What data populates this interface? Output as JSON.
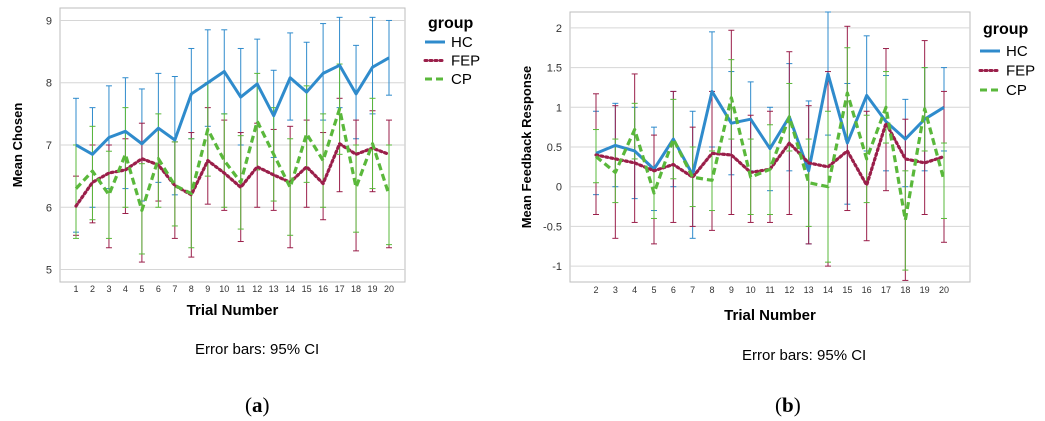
{
  "chart_data": [
    {
      "type": "line",
      "panel_label": "a",
      "xlabel": "Trial Number",
      "ylabel": "Mean Chosen",
      "caption": "Error bars: 95% CI",
      "legend_title": "group",
      "legend_position": "top-right",
      "grid": "horizontal",
      "categories": [
        "1",
        "2",
        "3",
        "4",
        "5",
        "6",
        "7",
        "8",
        "9",
        "10",
        "11",
        "12",
        "13",
        "14",
        "15",
        "16",
        "17",
        "18",
        "19",
        "20"
      ],
      "ylim": [
        4.8,
        9.2
      ],
      "yticks": [
        "5",
        "6",
        "7",
        "8",
        "9"
      ],
      "series": [
        {
          "name": "HC",
          "color": "#2f8bcc",
          "dash": "solid",
          "values": [
            7.0,
            6.85,
            7.12,
            7.22,
            7.02,
            7.27,
            7.08,
            7.82,
            8.0,
            8.18,
            7.77,
            7.98,
            7.47,
            8.08,
            7.85,
            8.15,
            8.28,
            7.82,
            8.25,
            8.4
          ],
          "ci_low": [
            5.6,
            6.0,
            6.3,
            6.3,
            6.1,
            6.4,
            6.2,
            7.1,
            7.3,
            7.5,
            7.0,
            7.3,
            6.8,
            7.4,
            7.1,
            7.4,
            7.6,
            7.1,
            7.5,
            7.8
          ],
          "ci_high": [
            7.75,
            7.6,
            7.95,
            8.08,
            7.9,
            8.15,
            8.1,
            8.55,
            8.85,
            8.85,
            8.55,
            8.7,
            8.2,
            8.8,
            8.65,
            8.95,
            9.05,
            8.6,
            9.05,
            9.0
          ]
        },
        {
          "name": "FEP",
          "color": "#9a1f4a",
          "dash": "dotted",
          "values": [
            6.02,
            6.4,
            6.55,
            6.6,
            6.78,
            6.68,
            6.35,
            6.2,
            6.75,
            6.55,
            6.32,
            6.65,
            6.52,
            6.4,
            6.65,
            6.38,
            7.02,
            6.85,
            6.95,
            6.85
          ],
          "ci_low": [
            5.55,
            5.75,
            5.35,
            5.9,
            5.12,
            6.1,
            5.5,
            5.2,
            6.05,
            5.95,
            5.45,
            6.0,
            5.95,
            5.35,
            6.0,
            5.8,
            6.25,
            5.3,
            6.25,
            5.35
          ],
          "ci_high": [
            6.5,
            7.0,
            7.0,
            7.1,
            7.35,
            7.25,
            7.05,
            7.2,
            7.6,
            7.4,
            7.2,
            7.35,
            7.25,
            7.3,
            7.4,
            7.2,
            7.75,
            7.4,
            7.55,
            7.4
          ]
        },
        {
          "name": "CP",
          "color": "#5ab83b",
          "dash": "dashed",
          "values": [
            6.3,
            6.58,
            6.2,
            6.85,
            5.95,
            6.78,
            6.35,
            6.22,
            7.25,
            6.75,
            6.4,
            7.38,
            6.85,
            6.32,
            7.18,
            6.75,
            7.58,
            6.32,
            7.02,
            6.2
          ],
          "ci_low": [
            5.5,
            5.8,
            5.5,
            6.0,
            5.25,
            6.0,
            5.7,
            5.35,
            6.5,
            6.0,
            5.65,
            6.6,
            6.1,
            5.55,
            6.4,
            6.0,
            6.85,
            5.6,
            6.3,
            5.4
          ],
          "ci_high": [
            7.0,
            7.3,
            6.9,
            7.6,
            6.7,
            7.5,
            7.05,
            7.1,
            8.0,
            7.5,
            7.15,
            8.15,
            7.6,
            7.1,
            7.95,
            7.5,
            8.3,
            7.0,
            7.75,
            7.0
          ]
        }
      ]
    },
    {
      "type": "line",
      "panel_label": "b",
      "xlabel": "Trial Number",
      "ylabel": "Mean Feedback Response",
      "caption": "Error bars: 95% CI",
      "legend_title": "group",
      "legend_position": "top-right",
      "grid": "horizontal",
      "categories": [
        "2",
        "3",
        "4",
        "5",
        "6",
        "7",
        "8",
        "9",
        "10",
        "11",
        "12",
        "13",
        "14",
        "15",
        "16",
        "17",
        "18",
        "19",
        "20"
      ],
      "ylim": [
        -1.2,
        2.2
      ],
      "yticks": [
        "-1",
        "-0.5",
        "0",
        "0.5",
        "1",
        "1.5",
        "2"
      ],
      "series": [
        {
          "name": "HC",
          "color": "#2f8bcc",
          "dash": "solid",
          "values": [
            0.42,
            0.52,
            0.45,
            0.22,
            0.6,
            0.15,
            1.2,
            0.8,
            0.85,
            0.48,
            0.88,
            0.2,
            1.42,
            0.55,
            1.15,
            0.82,
            0.6,
            0.85,
            1.0
          ],
          "ci_low": [
            -0.1,
            0.0,
            -0.15,
            -0.3,
            0.0,
            -0.65,
            0.5,
            0.15,
            0.2,
            -0.05,
            0.2,
            -0.72,
            0.65,
            -0.22,
            0.45,
            0.2,
            0.0,
            0.2,
            0.45
          ],
          "ci_high": [
            0.95,
            1.05,
            1.0,
            0.75,
            1.2,
            0.95,
            1.95,
            1.45,
            1.32,
            1.0,
            1.55,
            1.08,
            2.2,
            1.3,
            1.9,
            1.4,
            1.1,
            1.5,
            1.5
          ]
        },
        {
          "name": "FEP",
          "color": "#9a1f4a",
          "dash": "dotted",
          "values": [
            0.4,
            0.35,
            0.3,
            0.2,
            0.28,
            0.12,
            0.42,
            0.4,
            0.18,
            0.22,
            0.55,
            0.3,
            0.25,
            0.45,
            0.02,
            0.8,
            0.35,
            0.3,
            0.38
          ],
          "ci_low": [
            -0.35,
            -0.65,
            -0.45,
            -0.72,
            -0.45,
            -0.5,
            -0.55,
            -0.35,
            -0.45,
            -0.45,
            -0.35,
            -0.72,
            -1.0,
            -0.3,
            -0.68,
            -0.05,
            -1.18,
            -0.35,
            -0.7
          ],
          "ci_high": [
            1.17,
            1.02,
            1.42,
            0.65,
            1.2,
            0.75,
            1.2,
            1.97,
            0.9,
            0.95,
            1.7,
            1.02,
            1.45,
            2.02,
            0.95,
            1.74,
            0.85,
            1.84,
            1.2
          ]
        },
        {
          "name": "CP",
          "color": "#5ab83b",
          "dash": "dashed",
          "values": [
            0.38,
            0.18,
            0.72,
            -0.08,
            0.6,
            0.12,
            0.08,
            1.12,
            0.12,
            0.22,
            0.88,
            0.05,
            0.0,
            1.18,
            0.35,
            1.0,
            -0.42,
            0.98,
            0.08
          ],
          "ci_low": [
            0.05,
            -0.2,
            0.35,
            -0.4,
            0.1,
            -0.25,
            -0.3,
            0.6,
            -0.35,
            -0.35,
            0.45,
            -0.5,
            -0.95,
            0.6,
            -0.2,
            0.55,
            -1.05,
            0.45,
            -0.4
          ],
          "ci_high": [
            0.72,
            0.6,
            1.05,
            0.25,
            1.1,
            0.5,
            0.45,
            1.6,
            0.6,
            0.78,
            1.3,
            0.6,
            0.95,
            1.75,
            0.9,
            1.45,
            0.2,
            1.5,
            0.55
          ]
        }
      ]
    }
  ]
}
